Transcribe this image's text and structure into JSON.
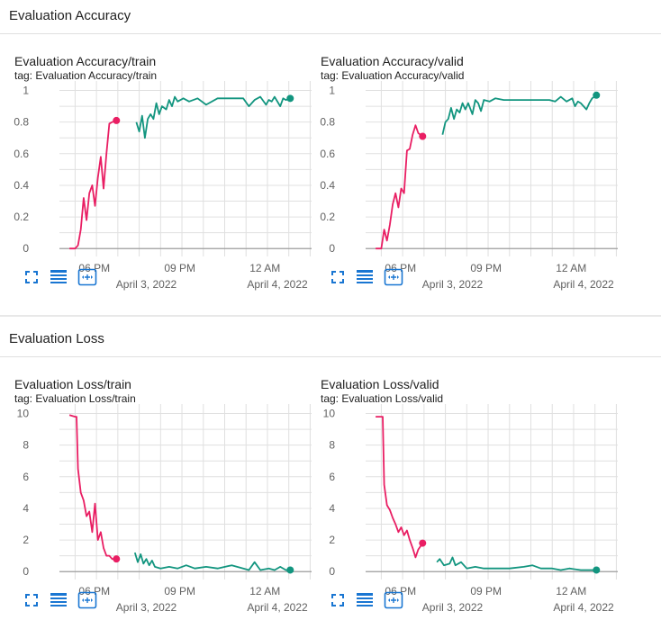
{
  "colors": {
    "pink": "#e91e63",
    "teal": "#12957f",
    "grid": "#e0e0e0",
    "axis": "#9e9e9e"
  },
  "sections": [
    {
      "title": "Evaluation Accuracy"
    },
    {
      "title": "Evaluation Loss"
    }
  ],
  "icons": [
    "fullscreen-icon",
    "data-table-icon",
    "fit-domain-icon"
  ],
  "cards": [
    {
      "title": "Evaluation Accuracy/train",
      "tag": "tag: Evaluation Accuracy/train",
      "chart_data": {
        "type": "line",
        "title": "Evaluation Accuracy/train",
        "y_ticks": [
          "1",
          "0.8",
          "0.6",
          "0.4",
          "0.2",
          "0"
        ],
        "y_values": [
          1,
          0.8,
          0.6,
          0.4,
          0.2,
          0
        ],
        "ylim": [
          -0.05,
          1.06
        ],
        "xlim": [
          17.45,
          26.3
        ],
        "x_ticks": [
          {
            "label": "06 PM",
            "value": 18
          },
          {
            "label": "09 PM",
            "value": 21
          },
          {
            "label": "12 AM",
            "value": 24
          }
        ],
        "date_labels": [
          {
            "label": "April 3, 2022",
            "value": 20.5
          },
          {
            "label": "April 4, 2022",
            "value": 25.1
          }
        ],
        "grid": true,
        "series": [
          {
            "color": "#e91e63",
            "points": [
              [
                17.8,
                0
              ],
              [
                18.0,
                0
              ],
              [
                18.1,
                0.02
              ],
              [
                18.2,
                0.12
              ],
              [
                18.3,
                0.32
              ],
              [
                18.4,
                0.18
              ],
              [
                18.5,
                0.35
              ],
              [
                18.6,
                0.4
              ],
              [
                18.7,
                0.27
              ],
              [
                18.8,
                0.45
              ],
              [
                18.9,
                0.58
              ],
              [
                19.0,
                0.38
              ],
              [
                19.1,
                0.6
              ],
              [
                19.2,
                0.79
              ],
              [
                19.3,
                0.8
              ],
              [
                19.45,
                0.81
              ]
            ]
          },
          {
            "color": "#12957f",
            "points": [
              [
                20.15,
                0.8
              ],
              [
                20.25,
                0.74
              ],
              [
                20.35,
                0.84
              ],
              [
                20.45,
                0.7
              ],
              [
                20.55,
                0.82
              ],
              [
                20.65,
                0.85
              ],
              [
                20.75,
                0.82
              ],
              [
                20.85,
                0.92
              ],
              [
                20.95,
                0.85
              ],
              [
                21.05,
                0.9
              ],
              [
                21.2,
                0.88
              ],
              [
                21.3,
                0.94
              ],
              [
                21.4,
                0.9
              ],
              [
                21.5,
                0.96
              ],
              [
                21.6,
                0.93
              ],
              [
                21.8,
                0.95
              ],
              [
                22.0,
                0.93
              ],
              [
                22.3,
                0.95
              ],
              [
                22.6,
                0.91
              ],
              [
                23.0,
                0.95
              ],
              [
                23.5,
                0.95
              ],
              [
                23.9,
                0.95
              ],
              [
                24.1,
                0.9
              ],
              [
                24.3,
                0.94
              ],
              [
                24.5,
                0.96
              ],
              [
                24.7,
                0.91
              ],
              [
                24.8,
                0.94
              ],
              [
                24.9,
                0.93
              ],
              [
                25.0,
                0.96
              ],
              [
                25.2,
                0.9
              ],
              [
                25.3,
                0.95
              ],
              [
                25.4,
                0.94
              ],
              [
                25.55,
                0.95
              ]
            ]
          }
        ]
      }
    },
    {
      "title": "Evaluation Accuracy/valid",
      "tag": "tag: Evaluation Accuracy/valid",
      "chart_data": {
        "type": "line",
        "title": "Evaluation Accuracy/valid",
        "y_ticks": [
          "1",
          "0.8",
          "0.6",
          "0.4",
          "0.2",
          "0"
        ],
        "y_values": [
          1,
          0.8,
          0.6,
          0.4,
          0.2,
          0
        ],
        "ylim": [
          -0.05,
          1.06
        ],
        "xlim": [
          17.45,
          26.3
        ],
        "x_ticks": [
          {
            "label": "06 PM",
            "value": 18
          },
          {
            "label": "09 PM",
            "value": 21
          },
          {
            "label": "12 AM",
            "value": 24
          }
        ],
        "date_labels": [
          {
            "label": "April 3, 2022",
            "value": 20.5
          },
          {
            "label": "April 4, 2022",
            "value": 25.1
          }
        ],
        "grid": true,
        "series": [
          {
            "color": "#e91e63",
            "points": [
              [
                17.8,
                0
              ],
              [
                18.0,
                0
              ],
              [
                18.1,
                0.12
              ],
              [
                18.2,
                0.05
              ],
              [
                18.3,
                0.15
              ],
              [
                18.4,
                0.28
              ],
              [
                18.5,
                0.35
              ],
              [
                18.6,
                0.26
              ],
              [
                18.7,
                0.38
              ],
              [
                18.8,
                0.35
              ],
              [
                18.9,
                0.62
              ],
              [
                19.0,
                0.63
              ],
              [
                19.1,
                0.72
              ],
              [
                19.2,
                0.78
              ],
              [
                19.3,
                0.73
              ],
              [
                19.45,
                0.71
              ]
            ]
          },
          {
            "color": "#12957f",
            "points": [
              [
                20.15,
                0.72
              ],
              [
                20.25,
                0.8
              ],
              [
                20.35,
                0.82
              ],
              [
                20.45,
                0.89
              ],
              [
                20.55,
                0.82
              ],
              [
                20.65,
                0.88
              ],
              [
                20.75,
                0.86
              ],
              [
                20.85,
                0.92
              ],
              [
                20.95,
                0.88
              ],
              [
                21.05,
                0.92
              ],
              [
                21.2,
                0.85
              ],
              [
                21.3,
                0.94
              ],
              [
                21.4,
                0.92
              ],
              [
                21.5,
                0.87
              ],
              [
                21.6,
                0.94
              ],
              [
                21.8,
                0.93
              ],
              [
                22.0,
                0.95
              ],
              [
                22.3,
                0.94
              ],
              [
                22.6,
                0.94
              ],
              [
                23.0,
                0.94
              ],
              [
                23.5,
                0.94
              ],
              [
                23.9,
                0.94
              ],
              [
                24.1,
                0.93
              ],
              [
                24.3,
                0.96
              ],
              [
                24.5,
                0.93
              ],
              [
                24.7,
                0.95
              ],
              [
                24.8,
                0.9
              ],
              [
                24.9,
                0.93
              ],
              [
                25.0,
                0.92
              ],
              [
                25.2,
                0.88
              ],
              [
                25.3,
                0.92
              ],
              [
                25.4,
                0.95
              ],
              [
                25.55,
                0.97
              ]
            ]
          }
        ]
      }
    },
    {
      "title": "Evaluation Loss/train",
      "tag": "tag: Evaluation Loss/train",
      "chart_data": {
        "type": "line",
        "title": "Evaluation Loss/train",
        "y_ticks": [
          "10",
          "8",
          "6",
          "4",
          "2",
          "0"
        ],
        "y_values": [
          10,
          8,
          6,
          4,
          2,
          0
        ],
        "ylim": [
          -0.5,
          10.6
        ],
        "xlim": [
          17.45,
          26.3
        ],
        "x_ticks": [
          {
            "label": "06 PM",
            "value": 18
          },
          {
            "label": "09 PM",
            "value": 21
          },
          {
            "label": "12 AM",
            "value": 24
          }
        ],
        "date_labels": [
          {
            "label": "April 3, 2022",
            "value": 20.5
          },
          {
            "label": "April 4, 2022",
            "value": 25.1
          }
        ],
        "grid": true,
        "series": [
          {
            "color": "#e91e63",
            "points": [
              [
                17.8,
                9.9
              ],
              [
                18.0,
                9.8
              ],
              [
                18.05,
                9.8
              ],
              [
                18.1,
                6.5
              ],
              [
                18.2,
                5.0
              ],
              [
                18.3,
                4.5
              ],
              [
                18.4,
                3.5
              ],
              [
                18.5,
                3.8
              ],
              [
                18.6,
                2.5
              ],
              [
                18.7,
                4.3
              ],
              [
                18.8,
                2.0
              ],
              [
                18.9,
                2.5
              ],
              [
                19.0,
                1.5
              ],
              [
                19.1,
                1.0
              ],
              [
                19.2,
                1.0
              ],
              [
                19.3,
                0.8
              ],
              [
                19.45,
                0.8
              ]
            ]
          },
          {
            "color": "#12957f",
            "points": [
              [
                20.1,
                1.2
              ],
              [
                20.2,
                0.6
              ],
              [
                20.3,
                1.1
              ],
              [
                20.4,
                0.5
              ],
              [
                20.5,
                0.8
              ],
              [
                20.6,
                0.4
              ],
              [
                20.7,
                0.7
              ],
              [
                20.8,
                0.3
              ],
              [
                21.0,
                0.2
              ],
              [
                21.3,
                0.3
              ],
              [
                21.6,
                0.2
              ],
              [
                21.9,
                0.4
              ],
              [
                22.2,
                0.2
              ],
              [
                22.6,
                0.3
              ],
              [
                23.0,
                0.2
              ],
              [
                23.5,
                0.4
              ],
              [
                23.9,
                0.2
              ],
              [
                24.1,
                0.1
              ],
              [
                24.3,
                0.6
              ],
              [
                24.5,
                0.1
              ],
              [
                24.8,
                0.2
              ],
              [
                25.0,
                0.1
              ],
              [
                25.2,
                0.3
              ],
              [
                25.4,
                0.1
              ],
              [
                25.55,
                0.1
              ]
            ]
          }
        ]
      }
    },
    {
      "title": "Evaluation Loss/valid",
      "tag": "tag: Evaluation Loss/valid",
      "chart_data": {
        "type": "line",
        "title": "Evaluation Loss/valid",
        "y_ticks": [
          "10",
          "8",
          "6",
          "4",
          "2",
          "0"
        ],
        "y_values": [
          10,
          8,
          6,
          4,
          2,
          0
        ],
        "ylim": [
          -0.5,
          10.6
        ],
        "xlim": [
          17.45,
          26.3
        ],
        "x_ticks": [
          {
            "label": "06 PM",
            "value": 18
          },
          {
            "label": "09 PM",
            "value": 21
          },
          {
            "label": "12 AM",
            "value": 24
          }
        ],
        "date_labels": [
          {
            "label": "April 3, 2022",
            "value": 20.5
          },
          {
            "label": "April 4, 2022",
            "value": 25.1
          }
        ],
        "grid": true,
        "series": [
          {
            "color": "#e91e63",
            "points": [
              [
                17.8,
                9.8
              ],
              [
                18.0,
                9.8
              ],
              [
                18.05,
                9.8
              ],
              [
                18.1,
                5.5
              ],
              [
                18.2,
                4.2
              ],
              [
                18.3,
                3.9
              ],
              [
                18.4,
                3.4
              ],
              [
                18.5,
                3.0
              ],
              [
                18.6,
                2.5
              ],
              [
                18.7,
                2.8
              ],
              [
                18.8,
                2.3
              ],
              [
                18.9,
                2.6
              ],
              [
                19.0,
                2.0
              ],
              [
                19.1,
                1.5
              ],
              [
                19.2,
                0.9
              ],
              [
                19.3,
                1.4
              ],
              [
                19.45,
                1.8
              ]
            ]
          },
          {
            "color": "#12957f",
            "points": [
              [
                19.95,
                0.6
              ],
              [
                20.05,
                0.8
              ],
              [
                20.2,
                0.4
              ],
              [
                20.4,
                0.5
              ],
              [
                20.5,
                0.9
              ],
              [
                20.6,
                0.4
              ],
              [
                20.8,
                0.6
              ],
              [
                21.0,
                0.2
              ],
              [
                21.3,
                0.3
              ],
              [
                21.6,
                0.2
              ],
              [
                22.0,
                0.2
              ],
              [
                22.5,
                0.2
              ],
              [
                23.0,
                0.3
              ],
              [
                23.3,
                0.4
              ],
              [
                23.6,
                0.2
              ],
              [
                24.0,
                0.2
              ],
              [
                24.3,
                0.1
              ],
              [
                24.6,
                0.2
              ],
              [
                25.0,
                0.1
              ],
              [
                25.3,
                0.1
              ],
              [
                25.55,
                0.1
              ]
            ]
          }
        ]
      }
    }
  ]
}
